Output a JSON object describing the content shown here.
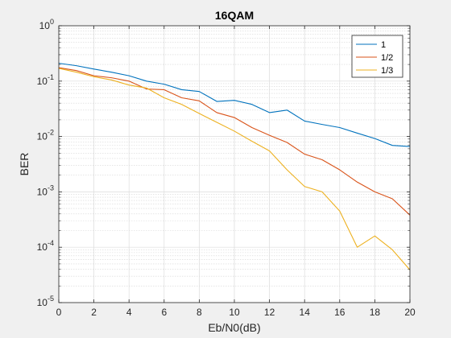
{
  "chart_data": {
    "type": "line",
    "title": "16QAM",
    "xlabel": "Eb/N0(dB)",
    "ylabel": "BER",
    "xlim": [
      0,
      20
    ],
    "ylim": [
      1e-05,
      1
    ],
    "yscale": "log",
    "grid": true,
    "minor_grid": true,
    "legend_position": "top-right",
    "x_ticks": [
      0,
      2,
      4,
      6,
      8,
      10,
      12,
      14,
      16,
      18,
      20
    ],
    "y_ticks": [
      {
        "value": 1,
        "base": "10",
        "exp": "0"
      },
      {
        "value": 0.1,
        "base": "10",
        "exp": "-1"
      },
      {
        "value": 0.01,
        "base": "10",
        "exp": "-2"
      },
      {
        "value": 0.001,
        "base": "10",
        "exp": "-3"
      },
      {
        "value": 0.0001,
        "base": "10",
        "exp": "-4"
      },
      {
        "value": 1e-05,
        "base": "10",
        "exp": "-5"
      }
    ],
    "x": [
      0,
      1,
      2,
      3,
      4,
      5,
      6,
      7,
      8,
      9,
      10,
      11,
      12,
      13,
      14,
      15,
      16,
      17,
      18,
      19,
      20
    ],
    "series": [
      {
        "name": "1",
        "color": "#0072BD",
        "values": [
          0.21,
          0.19,
          0.165,
          0.145,
          0.125,
          0.1,
          0.088,
          0.07,
          0.065,
          0.043,
          0.045,
          0.038,
          0.027,
          0.03,
          0.019,
          0.0165,
          0.0145,
          0.0115,
          0.0092,
          0.0069,
          0.0066
        ]
      },
      {
        "name": "1/2",
        "color": "#D95319",
        "values": [
          0.175,
          0.155,
          0.125,
          0.115,
          0.1,
          0.072,
          0.07,
          0.05,
          0.044,
          0.027,
          0.022,
          0.0145,
          0.0105,
          0.0078,
          0.0048,
          0.0038,
          0.0025,
          0.0015,
          0.001,
          0.00075,
          0.00038
        ]
      },
      {
        "name": "1/3",
        "color": "#EDB120",
        "values": [
          0.17,
          0.145,
          0.12,
          0.105,
          0.085,
          0.075,
          0.05,
          0.038,
          0.026,
          0.018,
          0.0125,
          0.0082,
          0.0055,
          0.0025,
          0.00125,
          0.001,
          0.00045,
          0.0001,
          0.00016,
          9e-05,
          3.9e-05
        ]
      }
    ]
  }
}
